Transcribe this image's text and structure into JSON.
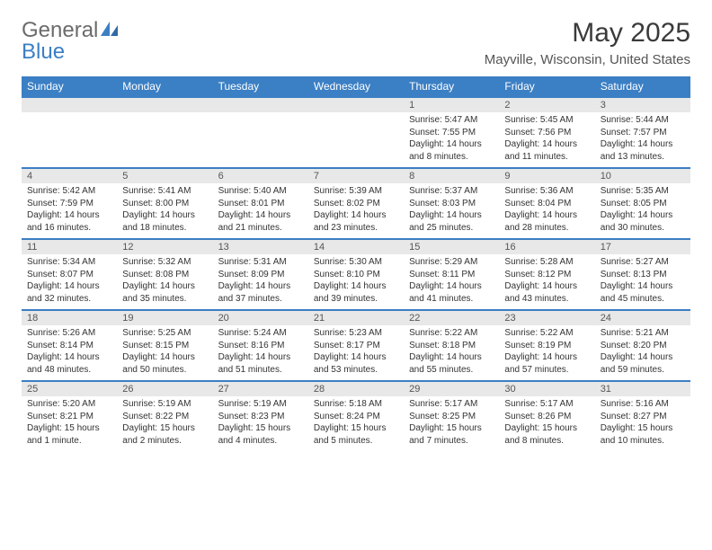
{
  "brand": {
    "general": "General",
    "blue": "Blue"
  },
  "header": {
    "month_title": "May 2025",
    "location": "Mayville, Wisconsin, United States"
  },
  "colors": {
    "accent": "#3b7fc4",
    "header_text": "#ffffff",
    "day_num_bg": "#e8e8e8",
    "text_dark": "#333333",
    "text_gray": "#6b6b6b"
  },
  "weekdays": [
    "Sunday",
    "Monday",
    "Tuesday",
    "Wednesday",
    "Thursday",
    "Friday",
    "Saturday"
  ],
  "weeks": [
    {
      "nums": [
        "",
        "",
        "",
        "",
        "1",
        "2",
        "3"
      ],
      "data": [
        "",
        "",
        "",
        "",
        "Sunrise: 5:47 AM\nSunset: 7:55 PM\nDaylight: 14 hours and 8 minutes.",
        "Sunrise: 5:45 AM\nSunset: 7:56 PM\nDaylight: 14 hours and 11 minutes.",
        "Sunrise: 5:44 AM\nSunset: 7:57 PM\nDaylight: 14 hours and 13 minutes."
      ]
    },
    {
      "nums": [
        "4",
        "5",
        "6",
        "7",
        "8",
        "9",
        "10"
      ],
      "data": [
        "Sunrise: 5:42 AM\nSunset: 7:59 PM\nDaylight: 14 hours and 16 minutes.",
        "Sunrise: 5:41 AM\nSunset: 8:00 PM\nDaylight: 14 hours and 18 minutes.",
        "Sunrise: 5:40 AM\nSunset: 8:01 PM\nDaylight: 14 hours and 21 minutes.",
        "Sunrise: 5:39 AM\nSunset: 8:02 PM\nDaylight: 14 hours and 23 minutes.",
        "Sunrise: 5:37 AM\nSunset: 8:03 PM\nDaylight: 14 hours and 25 minutes.",
        "Sunrise: 5:36 AM\nSunset: 8:04 PM\nDaylight: 14 hours and 28 minutes.",
        "Sunrise: 5:35 AM\nSunset: 8:05 PM\nDaylight: 14 hours and 30 minutes."
      ]
    },
    {
      "nums": [
        "11",
        "12",
        "13",
        "14",
        "15",
        "16",
        "17"
      ],
      "data": [
        "Sunrise: 5:34 AM\nSunset: 8:07 PM\nDaylight: 14 hours and 32 minutes.",
        "Sunrise: 5:32 AM\nSunset: 8:08 PM\nDaylight: 14 hours and 35 minutes.",
        "Sunrise: 5:31 AM\nSunset: 8:09 PM\nDaylight: 14 hours and 37 minutes.",
        "Sunrise: 5:30 AM\nSunset: 8:10 PM\nDaylight: 14 hours and 39 minutes.",
        "Sunrise: 5:29 AM\nSunset: 8:11 PM\nDaylight: 14 hours and 41 minutes.",
        "Sunrise: 5:28 AM\nSunset: 8:12 PM\nDaylight: 14 hours and 43 minutes.",
        "Sunrise: 5:27 AM\nSunset: 8:13 PM\nDaylight: 14 hours and 45 minutes."
      ]
    },
    {
      "nums": [
        "18",
        "19",
        "20",
        "21",
        "22",
        "23",
        "24"
      ],
      "data": [
        "Sunrise: 5:26 AM\nSunset: 8:14 PM\nDaylight: 14 hours and 48 minutes.",
        "Sunrise: 5:25 AM\nSunset: 8:15 PM\nDaylight: 14 hours and 50 minutes.",
        "Sunrise: 5:24 AM\nSunset: 8:16 PM\nDaylight: 14 hours and 51 minutes.",
        "Sunrise: 5:23 AM\nSunset: 8:17 PM\nDaylight: 14 hours and 53 minutes.",
        "Sunrise: 5:22 AM\nSunset: 8:18 PM\nDaylight: 14 hours and 55 minutes.",
        "Sunrise: 5:22 AM\nSunset: 8:19 PM\nDaylight: 14 hours and 57 minutes.",
        "Sunrise: 5:21 AM\nSunset: 8:20 PM\nDaylight: 14 hours and 59 minutes."
      ]
    },
    {
      "nums": [
        "25",
        "26",
        "27",
        "28",
        "29",
        "30",
        "31"
      ],
      "data": [
        "Sunrise: 5:20 AM\nSunset: 8:21 PM\nDaylight: 15 hours and 1 minute.",
        "Sunrise: 5:19 AM\nSunset: 8:22 PM\nDaylight: 15 hours and 2 minutes.",
        "Sunrise: 5:19 AM\nSunset: 8:23 PM\nDaylight: 15 hours and 4 minutes.",
        "Sunrise: 5:18 AM\nSunset: 8:24 PM\nDaylight: 15 hours and 5 minutes.",
        "Sunrise: 5:17 AM\nSunset: 8:25 PM\nDaylight: 15 hours and 7 minutes.",
        "Sunrise: 5:17 AM\nSunset: 8:26 PM\nDaylight: 15 hours and 8 minutes.",
        "Sunrise: 5:16 AM\nSunset: 8:27 PM\nDaylight: 15 hours and 10 minutes."
      ]
    }
  ]
}
